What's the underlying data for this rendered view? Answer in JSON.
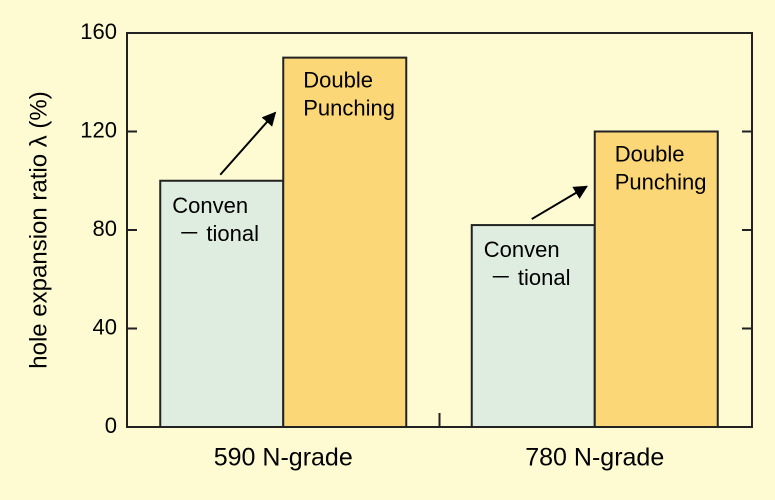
{
  "chart_data": {
    "type": "bar",
    "ylabel": "hole expansion ratio λ (%)",
    "categories": [
      "590 N-grade",
      "780 N-grade"
    ],
    "series": [
      {
        "name": "Conven\n－ tional",
        "color": "#deede0",
        "values": [
          100,
          82
        ]
      },
      {
        "name": "Double\nPunching",
        "color": "#fcd777",
        "values": [
          150,
          120
        ]
      }
    ],
    "ylim": [
      0,
      160
    ],
    "yticks": [
      0,
      40,
      80,
      120,
      160
    ]
  }
}
